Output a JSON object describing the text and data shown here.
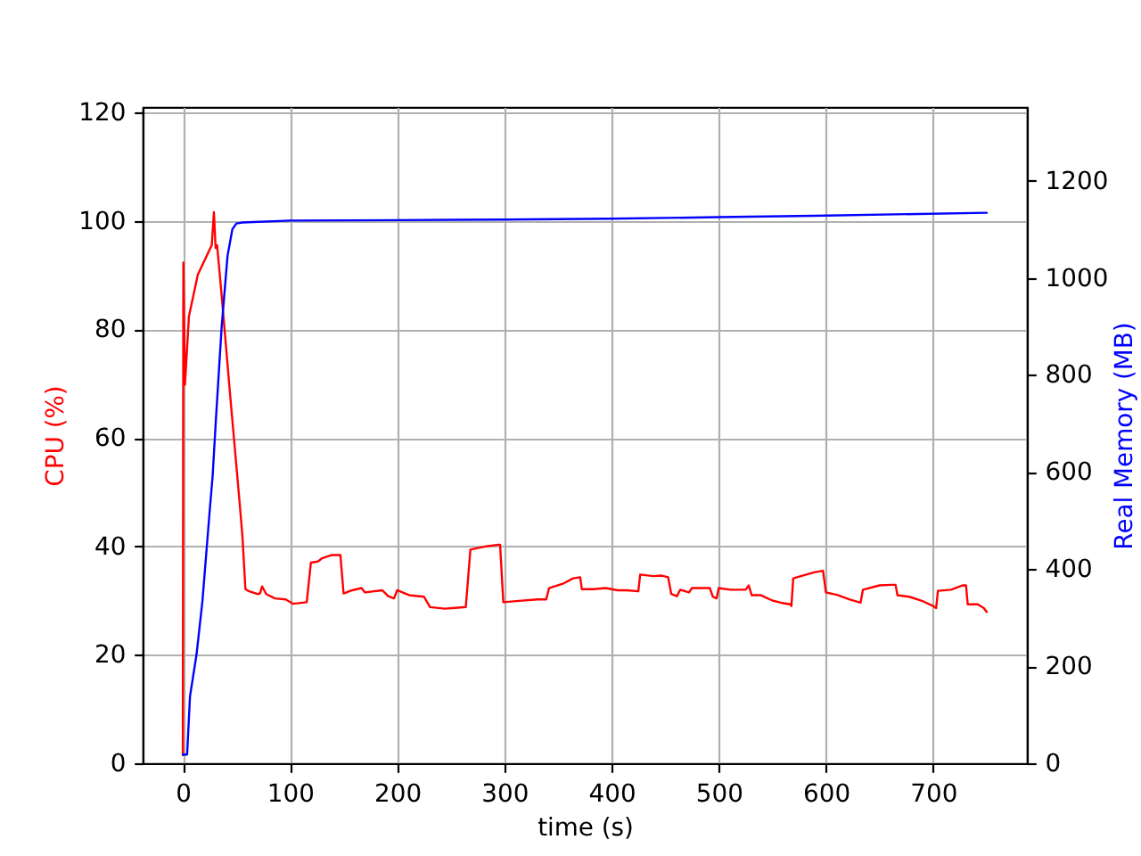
{
  "chart_data": {
    "type": "line",
    "xlabel": "time (s)",
    "ylabel": "CPU (%)",
    "y2label": "Real Memory (MB)",
    "xlim": [
      -37.5,
      787.5
    ],
    "xticks": [
      0,
      100,
      200,
      300,
      400,
      500,
      600,
      700
    ],
    "ylim": [
      0,
      121
    ],
    "yticks": [
      0,
      20,
      40,
      60,
      80,
      100,
      120
    ],
    "y2lim": [
      0,
      1352
    ],
    "y2ticks": [
      0,
      200,
      400,
      600,
      800,
      1000,
      1200
    ],
    "grid": true,
    "series": [
      {
        "color": "#ff0000",
        "x": [
          0,
          0.5,
          2,
          5.7,
          14,
          25,
          27,
          29,
          30.6,
          32,
          36,
          44.5,
          52.8,
          55.6,
          58.4,
          62,
          69.5,
          72,
          74,
          77.8,
          86,
          96,
          103,
          115.6,
          119.5,
          126,
          130,
          139,
          147,
          150,
          158,
          166.7,
          170,
          186,
          191.7,
          197,
          200,
          211,
          225,
          230.7,
          244.5,
          264,
          268.3,
          283,
          294.5,
          296,
          299,
          311,
          330.7,
          339,
          341.7,
          355.7,
          364,
          370.7,
          372.3,
          383,
          394.5,
          405.7,
          414,
          425,
          426.7,
          439,
          447,
          452.8,
          455.7,
          461,
          464,
          472.3,
          475,
          491.7,
          494.5,
          498,
          500,
          511,
          525,
          528,
          530.7,
          539,
          550,
          558,
          566.7,
          567.8,
          569.5,
          578,
          589,
          597.3,
          600,
          611,
          622.3,
          632.3,
          634.5,
          650,
          661,
          665,
          666.7,
          677.8,
          689,
          700,
          702.8,
          704.5,
          716.7,
          727.8,
          730.7,
          732.3,
          741.7,
          747.3,
          750
        ],
        "values": [
          1.5,
          92.3,
          69.8,
          82.4,
          90.1,
          94.7,
          95.5,
          101.6,
          95.0,
          95.5,
          86.8,
          67.1,
          48.5,
          41.9,
          32.1,
          31.7,
          31.2,
          31.3,
          32.6,
          31.2,
          30.4,
          30.2,
          29.4,
          29.7,
          37.0,
          37.2,
          37.8,
          38.4,
          38.4,
          31.3,
          31.9,
          32.3,
          31.5,
          31.9,
          30.8,
          30.4,
          31.9,
          31.0,
          30.7,
          28.8,
          28.5,
          28.8,
          39.4,
          40.0,
          40.3,
          40.3,
          29.7,
          29.9,
          30.2,
          30.2,
          32.3,
          33.2,
          34.1,
          34.3,
          32.1,
          32.1,
          32.3,
          31.9,
          31.9,
          31.7,
          34.8,
          34.5,
          34.6,
          34.3,
          31.2,
          30.8,
          32.0,
          31.5,
          32.3,
          32.3,
          30.7,
          30.4,
          32.3,
          32.0,
          32.0,
          32.8,
          31.0,
          31.0,
          30.0,
          29.6,
          29.3,
          29.0,
          34.1,
          34.6,
          35.2,
          35.5,
          31.5,
          31.0,
          30.2,
          29.6,
          32.0,
          32.8,
          32.9,
          32.9,
          31.0,
          30.7,
          30.0,
          29.0,
          28.6,
          31.8,
          32.0,
          32.8,
          32.8,
          29.3,
          29.3,
          28.6,
          27.9
        ]
      },
      {
        "color": "#0000ff",
        "axis": "y2",
        "x": [
          0,
          4,
          6.7,
          12.8,
          18.3,
          25,
          27.8,
          30.7,
          36.2,
          41.7,
          46.2,
          50,
          55.6,
          100,
          200,
          300,
          400,
          500,
          589,
          750
        ],
        "values": [
          18,
          18,
          138,
          224,
          334,
          518,
          591,
          702,
          898,
          1045,
          1100,
          1112,
          1114,
          1118,
          1119,
          1120,
          1122,
          1125,
          1128,
          1134
        ]
      }
    ]
  }
}
